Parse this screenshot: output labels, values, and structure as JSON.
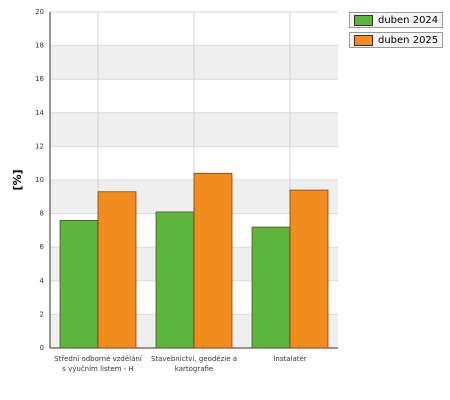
{
  "chart_data": {
    "type": "bar",
    "y_label": "[%]",
    "categories": [
      "Střední odborné vzdělání s výučním listem - H",
      "Stavebnictví, geodézie a kartografie",
      "Instalatér"
    ],
    "series": [
      {
        "name": "duben 2024",
        "color": "#5bb53f",
        "values": [
          7.6,
          8.1,
          7.2
        ]
      },
      {
        "name": "duben 2025",
        "color": "#f28c1e",
        "values": [
          9.3,
          10.4,
          9.4
        ]
      }
    ],
    "ylim": [
      0,
      20
    ],
    "yticks": [
      0,
      2,
      4,
      6,
      8,
      10,
      12,
      14,
      16,
      18,
      20
    ],
    "grid": true,
    "legend": "top-right"
  }
}
